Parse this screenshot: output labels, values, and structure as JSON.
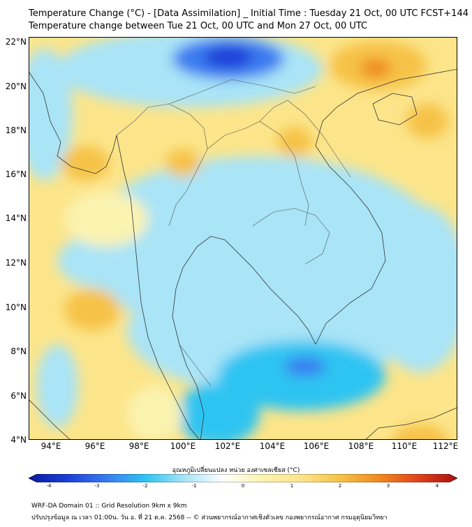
{
  "header": {
    "title_line1": "Temperature Change (°C) - [Data Assimilation] _ Initial Time : Tuesday 21 Oct, 00 UTC FCST+144",
    "title_line2": "Temperature change between Tue 21 Oct, 00 UTC and Mon 27 Oct, 00 UTC"
  },
  "map": {
    "lat_labels": [
      "22°N",
      "20°N",
      "18°N",
      "16°N",
      "14°N",
      "12°N",
      "10°N",
      "8°N",
      "6°N",
      "4°N"
    ],
    "lon_labels": [
      "94°E",
      "96°E",
      "98°E",
      "100°E",
      "102°E",
      "104°E",
      "106°E",
      "108°E",
      "110°E",
      "112°E"
    ],
    "background_color": "#fce58a",
    "land_line_color": "#333333"
  },
  "colorbar": {
    "title": "อุณหภูมิเปลี่ยนแปลง หน่วย องศาเซลเซียส (°C)",
    "tick_labels": [
      "-4",
      "-3",
      "-2",
      "-1",
      "0",
      "1",
      "2",
      "3",
      "4"
    ],
    "colors": [
      "#0a1a9e",
      "#1c3fd8",
      "#3a7cf0",
      "#2ec4f2",
      "#a9e4f7",
      "#ffffff",
      "#fbf3b0",
      "#fce58a",
      "#f6c246",
      "#f08a1e",
      "#e2421b",
      "#a80f10"
    ]
  },
  "footer": {
    "line1": "WRF-DA Domain 01 :: Grid Resolution 9km x 9km",
    "line2": "ปรับปรุงข้อมูล ณ เวลา 01:00น. วัน อ. ที่ 21 ต.ค. 2568 -- © ส่วนพยากรณ์อากาศเชิงตัวเลข กองพยากรณ์อากาศ กรมอุตุนิยมวิทยา"
  }
}
